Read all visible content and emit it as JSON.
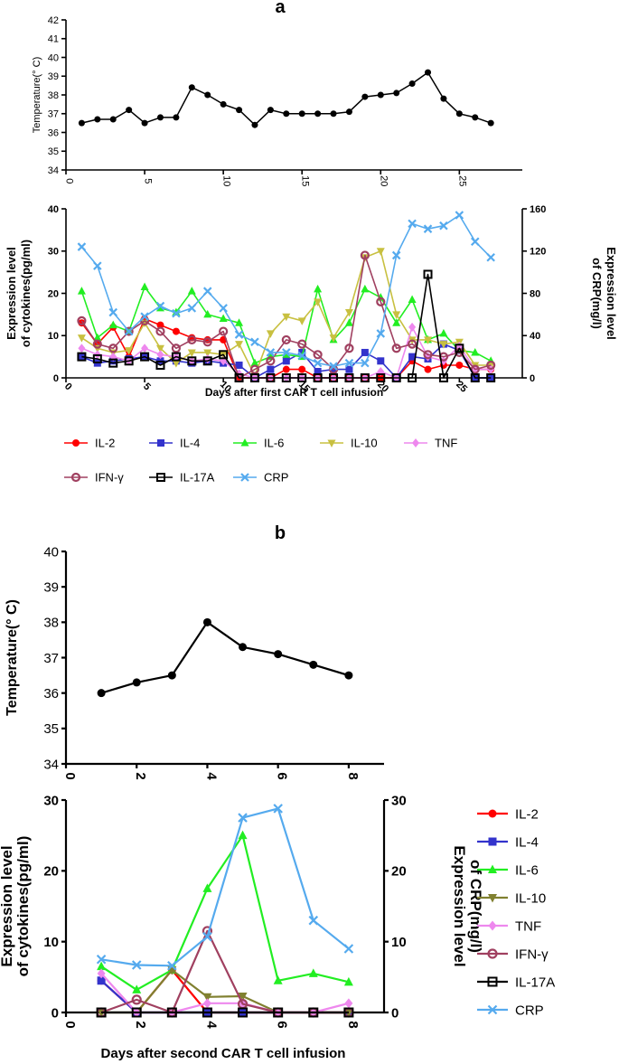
{
  "panels": [
    {
      "label": "a"
    },
    {
      "label": "b"
    }
  ],
  "colors": {
    "IL-2": "#ff0000",
    "IL-4": "#3333cc",
    "IL-6": "#22ee22",
    "IL-10_a": "#c8c040",
    "IL-10_b": "#808030",
    "TNF": "#ee88ee",
    "IFN-γ": "#a04060",
    "IL-17A": "#000000",
    "CRP": "#55aaee"
  },
  "chart_data": [
    {
      "id": "a-temp",
      "type": "line",
      "panel": "a",
      "ylabel": "Temperature(° C)",
      "xlabel": "",
      "xlim": [
        0,
        29
      ],
      "ylim": [
        34,
        42
      ],
      "xticks": [
        0,
        5,
        10,
        15,
        20,
        25
      ],
      "yticks": [
        34,
        35,
        36,
        37,
        38,
        39,
        40,
        41,
        42
      ],
      "series": [
        {
          "name": "Temperature",
          "x": [
            1,
            2,
            3,
            4,
            5,
            6,
            7,
            8,
            9,
            10,
            11,
            12,
            13,
            14,
            15,
            16,
            17,
            18,
            19,
            20,
            21,
            22,
            23,
            24,
            25,
            26,
            27
          ],
          "values": [
            36.5,
            36.7,
            36.7,
            37.2,
            36.5,
            36.8,
            36.8,
            38.4,
            38.0,
            37.5,
            37.2,
            36.4,
            37.2,
            37.0,
            37.0,
            37.0,
            37.0,
            37.1,
            37.9,
            38.0,
            38.1,
            38.6,
            39.2,
            37.8,
            37.0,
            36.8,
            36.5
          ]
        }
      ]
    },
    {
      "id": "a-cyt",
      "type": "line",
      "panel": "a",
      "title": "",
      "xlabel": "Days after first CAR T cell infusion",
      "ylabel": "Expression level of cytokines(pg/ml)",
      "ylabel_lines": [
        "Expression level",
        "of cytokines(pg/ml)"
      ],
      "y2label": "Expression level of CRP(mg/l)",
      "y2label_lines": [
        "Expression level",
        "of CRP(mg/l)"
      ],
      "xlim": [
        0,
        29
      ],
      "ylim": [
        0,
        40
      ],
      "y2lim": [
        0,
        160
      ],
      "xticks": [
        0,
        5,
        10,
        15,
        20,
        25
      ],
      "yticks": [
        0,
        10,
        20,
        30,
        40
      ],
      "y2ticks": [
        0,
        40,
        80,
        120,
        160
      ],
      "legend": "bottom",
      "legend_rows": [
        [
          "IL-2",
          "IL-4",
          "IL-6",
          "IL-10",
          "TNF"
        ],
        [
          "IFN-γ",
          "IL-17A",
          "CRP"
        ]
      ],
      "series": [
        {
          "name": "IL-2",
          "marker": "circle",
          "color": "#ff0000",
          "x": [
            1,
            2,
            3,
            4,
            5,
            6,
            7,
            8,
            9,
            10,
            11,
            12,
            13,
            14,
            15,
            16,
            17,
            18,
            19,
            20,
            21,
            22,
            23,
            24,
            25,
            26,
            27
          ],
          "values": [
            13,
            8,
            12,
            5,
            14,
            12.5,
            11,
            9.5,
            9,
            9,
            0,
            0,
            0,
            2,
            2,
            0,
            0,
            0,
            0,
            0,
            0,
            4,
            2,
            3,
            3,
            2,
            2
          ]
        },
        {
          "name": "IL-4",
          "marker": "square",
          "color": "#3333cc",
          "x": [
            1,
            2,
            3,
            4,
            5,
            6,
            7,
            8,
            9,
            10,
            11,
            12,
            13,
            14,
            15,
            16,
            17,
            18,
            19,
            20,
            21,
            22,
            23,
            24,
            25,
            26,
            27
          ],
          "values": [
            5,
            3.5,
            4,
            4.5,
            5,
            4,
            4,
            3.5,
            4,
            3.5,
            3,
            0,
            2,
            4,
            6,
            1.5,
            2,
            2,
            6,
            4,
            0,
            5,
            4.5,
            8,
            6.5,
            0,
            0
          ]
        },
        {
          "name": "IL-6",
          "marker": "triangle-up",
          "color": "#22ee22",
          "x": [
            1,
            2,
            3,
            4,
            5,
            6,
            7,
            8,
            9,
            10,
            11,
            12,
            13,
            14,
            15,
            16,
            17,
            18,
            19,
            20,
            21,
            22,
            23,
            24,
            25,
            26,
            27
          ],
          "values": [
            20.5,
            9.5,
            12.5,
            11,
            21.5,
            16.5,
            15.5,
            20.5,
            15,
            14,
            13,
            3.5,
            5,
            5.5,
            5,
            21,
            9,
            13,
            21,
            19,
            13,
            18.5,
            9,
            10.5,
            6.5,
            6,
            4
          ]
        },
        {
          "name": "IL-10",
          "marker": "triangle-down",
          "color": "#c8c040",
          "x": [
            1,
            2,
            3,
            4,
            5,
            6,
            7,
            8,
            9,
            10,
            11,
            12,
            13,
            14,
            15,
            16,
            17,
            18,
            19,
            20,
            21,
            22,
            23,
            24,
            25,
            26,
            27
          ],
          "values": [
            9.5,
            7,
            6,
            6.5,
            13,
            7,
            3.5,
            6,
            6,
            5.5,
            8,
            0.5,
            10.5,
            14.5,
            13.5,
            18,
            9.5,
            15.5,
            28.5,
            30,
            15,
            9,
            9,
            8,
            8.5,
            3,
            3
          ]
        },
        {
          "name": "TNF",
          "marker": "diamond",
          "color": "#ee88ee",
          "x": [
            1,
            2,
            3,
            4,
            5,
            6,
            7,
            8,
            9,
            10,
            11,
            12,
            13,
            14,
            15,
            16,
            17,
            18,
            19,
            20,
            21,
            22,
            23,
            24,
            25,
            26,
            27
          ],
          "values": [
            7,
            5.5,
            5,
            4,
            7,
            5.5,
            5,
            4,
            4.5,
            4,
            1,
            0,
            0,
            0,
            0,
            0,
            0,
            0,
            0,
            1.5,
            0,
            12,
            5,
            4,
            7.5,
            2,
            2
          ]
        },
        {
          "name": "IFN-γ",
          "marker": "circle-open",
          "color": "#a04060",
          "x": [
            1,
            2,
            3,
            4,
            5,
            6,
            7,
            8,
            9,
            10,
            11,
            12,
            13,
            14,
            15,
            16,
            17,
            18,
            19,
            20,
            21,
            22,
            23,
            24,
            25,
            26,
            27
          ],
          "values": [
            13.5,
            8,
            7,
            11,
            13.5,
            11,
            7,
            9,
            8.5,
            11,
            0,
            2,
            4,
            9,
            8,
            5.5,
            2,
            7,
            29,
            18,
            7,
            8,
            5.5,
            5,
            6,
            2,
            3
          ]
        },
        {
          "name": "IL-17A",
          "marker": "square-open",
          "color": "#000000",
          "x": [
            1,
            2,
            3,
            4,
            5,
            6,
            7,
            8,
            9,
            10,
            11,
            12,
            13,
            14,
            15,
            16,
            17,
            18,
            19,
            20,
            21,
            22,
            23,
            24,
            25,
            26,
            27
          ],
          "values": [
            5,
            4.5,
            3.5,
            4,
            5,
            3,
            5,
            4,
            4,
            5.5,
            0,
            0,
            0,
            0,
            0,
            0,
            0,
            0,
            0,
            0,
            0,
            0,
            24.5,
            0,
            7,
            0,
            0
          ]
        },
        {
          "name": "CRP",
          "marker": "x",
          "color": "#55aaee",
          "axis": "right",
          "x": [
            1,
            2,
            3,
            4,
            5,
            6,
            7,
            8,
            9,
            10,
            11,
            12,
            13,
            14,
            15,
            16,
            17,
            18,
            19,
            20,
            21,
            22,
            23,
            24,
            25,
            26,
            27
          ],
          "values": [
            124,
            106,
            62,
            44,
            58,
            68,
            61,
            66,
            82,
            66,
            41,
            34,
            24,
            24,
            21,
            14,
            11,
            14,
            14,
            42,
            116,
            146,
            141,
            144,
            154,
            129,
            114
          ]
        }
      ]
    },
    {
      "id": "b-temp",
      "type": "line",
      "panel": "b",
      "ylabel": "Temperature(° C)",
      "xlabel": "",
      "xlim": [
        0,
        9
      ],
      "ylim": [
        34,
        40
      ],
      "xticks": [
        0,
        2,
        4,
        6,
        8
      ],
      "yticks": [
        34,
        35,
        36,
        37,
        38,
        39,
        40
      ],
      "series": [
        {
          "name": "Temperature",
          "x": [
            1,
            2,
            3,
            4,
            5,
            6,
            7,
            8
          ],
          "values": [
            36.0,
            36.3,
            36.5,
            38.0,
            37.3,
            37.1,
            36.8,
            36.5
          ]
        }
      ]
    },
    {
      "id": "b-cyt",
      "type": "line",
      "panel": "b",
      "xlabel": "Days after second CAR T cell infusion",
      "ylabel": "Expression level of cytokines(pg/ml)",
      "ylabel_lines": [
        "Expression level",
        "of cytokines(pg/ml)"
      ],
      "y2label": "Expression level of CRP(mg/l)",
      "y2label_lines": [
        "Expression level",
        "of CRP(mg/l)"
      ],
      "xlim": [
        0,
        9
      ],
      "ylim": [
        0,
        30
      ],
      "y2lim": [
        0,
        30
      ],
      "xticks": [
        0,
        2,
        4,
        6,
        8
      ],
      "yticks": [
        0,
        10,
        20,
        30
      ],
      "y2ticks": [
        0,
        10,
        20,
        30
      ],
      "legend": "right",
      "legend_items": [
        "IL-2",
        "IL-4",
        "IL-6",
        "IL-10",
        "TNF",
        "IFN-γ",
        "IL-17A",
        "CRP"
      ],
      "series": [
        {
          "name": "IL-2",
          "marker": "circle",
          "color": "#ff0000",
          "x": [
            1,
            2,
            3,
            4,
            5,
            6,
            7,
            8
          ],
          "values": [
            4.5,
            0,
            6,
            0,
            0,
            0,
            0,
            0
          ]
        },
        {
          "name": "IL-4",
          "marker": "square",
          "color": "#3333cc",
          "x": [
            1,
            2,
            3,
            4,
            5,
            6,
            7,
            8
          ],
          "values": [
            4.5,
            0,
            0,
            0,
            0,
            0,
            0,
            0
          ]
        },
        {
          "name": "IL-6",
          "marker": "triangle-up",
          "color": "#22ee22",
          "x": [
            1,
            2,
            3,
            4,
            5,
            6,
            7,
            8
          ],
          "values": [
            6.5,
            3.2,
            6,
            17.5,
            25,
            4.5,
            5.5,
            4.3
          ]
        },
        {
          "name": "IL-10",
          "marker": "triangle-down",
          "color": "#808030",
          "x": [
            1,
            2,
            3,
            4,
            5,
            6,
            7,
            8
          ],
          "values": [
            0,
            0,
            6,
            2.2,
            2.3,
            0,
            0,
            0
          ]
        },
        {
          "name": "TNF",
          "marker": "diamond",
          "color": "#ee88ee",
          "x": [
            1,
            2,
            3,
            4,
            5,
            6,
            7,
            8
          ],
          "values": [
            5.5,
            0,
            0,
            1.3,
            1.3,
            0,
            0,
            1.3
          ]
        },
        {
          "name": "IFN-γ",
          "marker": "circle-open",
          "color": "#a04060",
          "x": [
            1,
            2,
            3,
            4,
            5,
            6,
            7,
            8
          ],
          "values": [
            0,
            1.8,
            0,
            11.5,
            1.2,
            0,
            0,
            0
          ]
        },
        {
          "name": "IL-17A",
          "marker": "square-open",
          "color": "#000000",
          "x": [
            1,
            2,
            3,
            4,
            5,
            6,
            7,
            8
          ],
          "values": [
            0,
            0,
            0,
            0,
            0,
            0,
            0,
            0
          ]
        },
        {
          "name": "CRP",
          "marker": "x",
          "color": "#55aaee",
          "axis": "right",
          "x": [
            1,
            2,
            3,
            4,
            5,
            6,
            7,
            8
          ],
          "values": [
            7.5,
            6.7,
            6.6,
            10.7,
            27.5,
            28.8,
            13,
            9
          ]
        }
      ]
    }
  ]
}
